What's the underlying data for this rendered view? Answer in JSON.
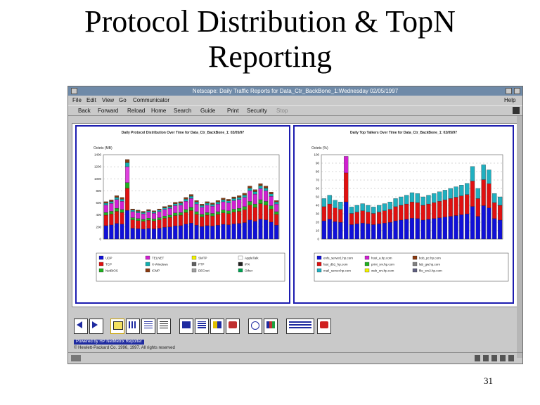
{
  "slide": {
    "title_line1": "Protocol Distribution & TopN",
    "title_line2": "Reporting",
    "page_number": "31"
  },
  "browser": {
    "window_title": "Netscape: Daily Traffic Reports for Data_Ctr_BackBone_1:Wednesday 02/05/1997",
    "menu": [
      "File",
      "Edit",
      "View",
      "Go",
      "Communicator"
    ],
    "help_label": "Help",
    "toolbar": [
      "Back",
      "Forward",
      "Reload",
      "Home",
      "Search",
      "Guide",
      "Print",
      "Security",
      "Stop"
    ]
  },
  "report": {
    "powered_by": "Powered by HP NetMetrix Reporter",
    "copyright": "© Hewlett-Packard Co. 1996, 1997. All rights reserved",
    "nav_buttons": [
      "back-nav-icon",
      "forward-nav-icon",
      "daily-report-icon",
      "weekly-report-icon",
      "table-icon",
      "spreadsheet-icon",
      "grid-view-icon",
      "list-view-icon",
      "bar-chart-icon",
      "pie-chart-icon",
      "info-icon",
      "stacked-chart-icon",
      "config-icon",
      "help-icon"
    ]
  },
  "chart_data": [
    {
      "type": "bar",
      "stacked": true,
      "title": "Daily Protocol Distribution Over Time for Data_Ctr_BackBone_1: 02/05/97",
      "ylabel": "Octets (MB)",
      "ylim": [
        0,
        1400
      ],
      "yticks": [
        "0",
        "200",
        "400",
        "600",
        "800",
        "1000",
        "1200",
        "1400"
      ],
      "legend_placement": "bottom",
      "legend": [
        "UDP",
        "TCP",
        "NetBIOS",
        "TELNET",
        "X-Windows",
        "ICMP",
        "SMTP",
        "FTP",
        "DECnet",
        "AppleTalk",
        "IPX",
        "Other"
      ],
      "colors": [
        "#1010d8",
        "#e01010",
        "#20b020",
        "#d020d0",
        "#10b0b0",
        "#8a3a10",
        "#f0f000",
        "#606060",
        "#a0a0a0",
        "#ffffff",
        "#202020",
        "#00a050"
      ],
      "totals": [
        620,
        650,
        720,
        690,
        1320,
        500,
        480,
        460,
        490,
        470,
        500,
        540,
        560,
        610,
        620,
        690,
        740,
        640,
        580,
        620,
        600,
        640,
        680,
        660,
        700,
        720,
        760,
        880,
        820,
        920,
        880,
        780,
        640
      ]
    },
    {
      "type": "bar",
      "stacked": true,
      "title": "Daily Top Talkers Over Time for Data_Ctr_BackBone_1: 02/05/97",
      "ylabel": "Octets (%)",
      "ylim": [
        0,
        100
      ],
      "yticks": [
        "0",
        "10",
        "20",
        "30",
        "40",
        "50",
        "60",
        "70",
        "80",
        "90",
        "100"
      ],
      "legend_placement": "bottom",
      "legend": [
        "enfs_server1.hp.com",
        "fast_db1_hp.com",
        "mail_server.hp.com",
        "host_a.hp.com",
        "print_srv.hp.com",
        "web_srv.hp.com",
        "bob_pc.hp.com",
        "lab_gw.hp.com",
        "file_srv2.hp.com"
      ],
      "colors": [
        "#1010d8",
        "#e01010",
        "#20b0c0",
        "#d020d0",
        "#20b020",
        "#f0f000",
        "#8a3a10",
        "#808080",
        "#606080"
      ],
      "totals": [
        48,
        52,
        46,
        44,
        98,
        38,
        40,
        42,
        40,
        38,
        40,
        42,
        44,
        48,
        50,
        52,
        55,
        54,
        50,
        52,
        54,
        56,
        58,
        60,
        62,
        64,
        66,
        86,
        60,
        88,
        82,
        54,
        50
      ]
    }
  ]
}
